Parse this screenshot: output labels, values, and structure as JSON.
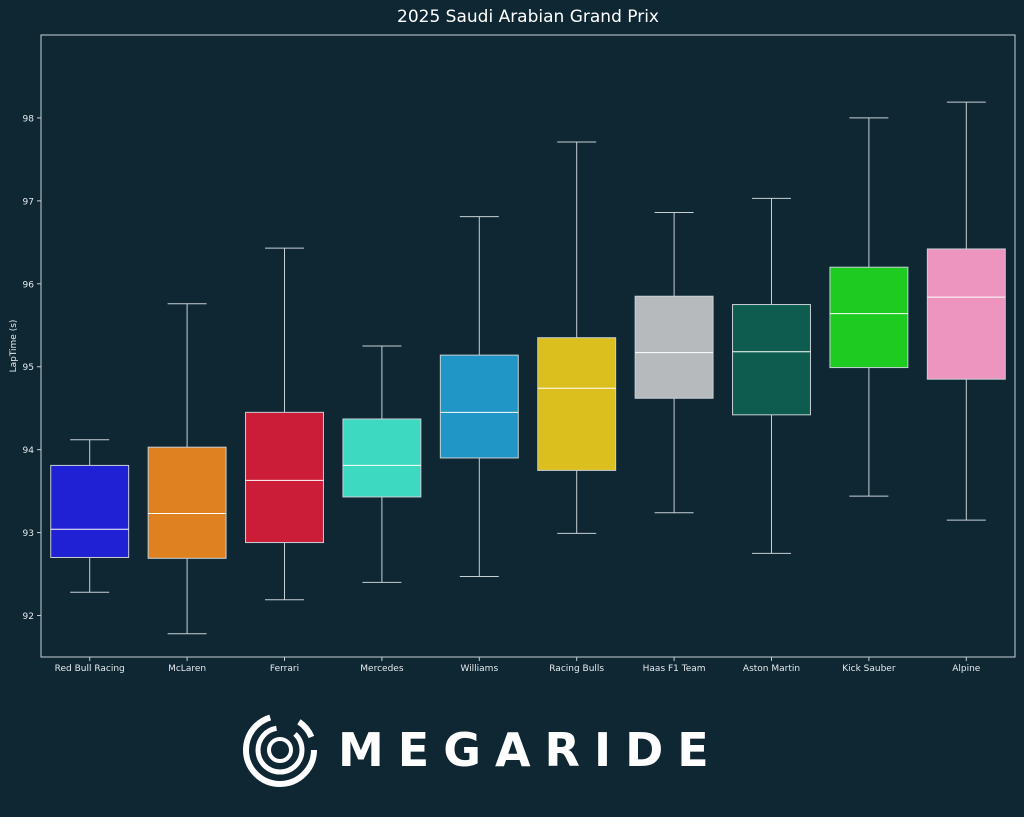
{
  "colors": {
    "background": "#0e2733",
    "axis": "#c8d0d6",
    "text": "#ffffff",
    "tick_text": "#e6eaee",
    "whisker": "#c8d0d6",
    "median": "#ffffff"
  },
  "chart_data": {
    "type": "box",
    "title": "2025 Saudi Arabian Grand Prix",
    "xlabel": "",
    "ylabel": "LapTime (s)",
    "ylim": [
      91.5,
      99.0
    ],
    "yticks": [
      92,
      93,
      94,
      95,
      96,
      97,
      98
    ],
    "grid": false,
    "categories": [
      "Red Bull Racing",
      "McLaren",
      "Ferrari",
      "Mercedes",
      "Williams",
      "Racing Bulls",
      "Haas F1 Team",
      "Aston Martin",
      "Kick Sauber",
      "Alpine"
    ],
    "series": [
      {
        "team": "Red Bull Racing",
        "color": "#2020d4",
        "whislo": 92.28,
        "q1": 92.7,
        "med": 93.04,
        "q3": 93.81,
        "whishi": 94.12
      },
      {
        "team": "McLaren",
        "color": "#df8120",
        "whislo": 91.78,
        "q1": 92.69,
        "med": 93.23,
        "q3": 94.03,
        "whishi": 95.76
      },
      {
        "team": "Ferrari",
        "color": "#cb1d37",
        "whislo": 92.19,
        "q1": 92.88,
        "med": 93.63,
        "q3": 94.45,
        "whishi": 96.43
      },
      {
        "team": "Mercedes",
        "color": "#3dd9c1",
        "whislo": 92.4,
        "q1": 93.43,
        "med": 93.81,
        "q3": 94.37,
        "whishi": 95.25
      },
      {
        "team": "Williams",
        "color": "#1f96c6",
        "whislo": 92.47,
        "q1": 93.9,
        "med": 94.45,
        "q3": 95.14,
        "whishi": 96.81
      },
      {
        "team": "Racing Bulls",
        "color": "#dbbf1f",
        "whislo": 92.99,
        "q1": 93.75,
        "med": 94.74,
        "q3": 95.35,
        "whishi": 97.71
      },
      {
        "team": "Haas F1 Team",
        "color": "#b6babd",
        "whislo": 93.24,
        "q1": 94.62,
        "med": 95.17,
        "q3": 95.85,
        "whishi": 96.86
      },
      {
        "team": "Aston Martin",
        "color": "#0e5c50",
        "whislo": 92.75,
        "q1": 94.42,
        "med": 95.18,
        "q3": 95.75,
        "whishi": 97.03
      },
      {
        "team": "Kick Sauber",
        "color": "#1ecb21",
        "whislo": 93.44,
        "q1": 94.99,
        "med": 95.64,
        "q3": 96.2,
        "whishi": 98.0
      },
      {
        "team": "Alpine",
        "color": "#ee95bf",
        "whislo": 93.15,
        "q1": 94.85,
        "med": 95.84,
        "q3": 96.42,
        "whishi": 98.19
      }
    ]
  },
  "logo": {
    "text": "MEGARIDE",
    "mark": "megaride-swirl-icon"
  }
}
